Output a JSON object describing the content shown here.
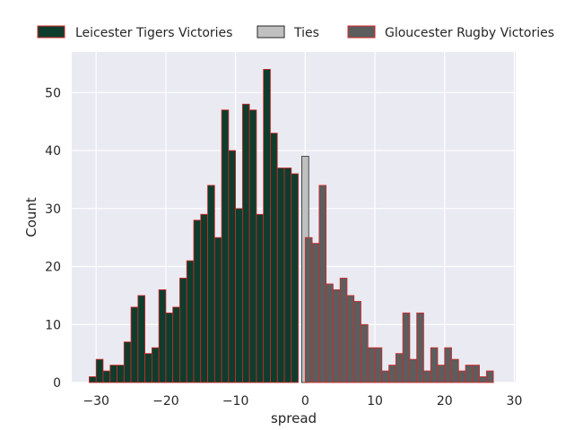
{
  "chart_data": {
    "type": "bar",
    "xlabel": "spread",
    "ylabel": "Count",
    "xlim": [
      -33.5,
      30.2
    ],
    "ylim": [
      0,
      57
    ],
    "x_ticks": [
      -30,
      -20,
      -10,
      0,
      10,
      20,
      30
    ],
    "y_ticks": [
      0,
      10,
      20,
      30,
      40,
      50
    ],
    "x_tick_labels": [
      "−30",
      "−20",
      "−10",
      "0",
      "10",
      "20",
      "30"
    ],
    "y_tick_labels": [
      "0",
      "10",
      "20",
      "30",
      "40",
      "50"
    ],
    "bin_width": 1,
    "grid": true,
    "legend_position": "top",
    "background_color": "#eaeaf2",
    "series": [
      {
        "name": "Leicester Tigers Victories",
        "color": "#0e3d2d",
        "edge_color": "#d62728",
        "x": [
          -31,
          -30,
          -29,
          -28,
          -27,
          -26,
          -25,
          -24,
          -23,
          -22,
          -21,
          -20,
          -19,
          -18,
          -17,
          -16,
          -15,
          -14,
          -13,
          -12,
          -11,
          -10,
          -9,
          -8,
          -7,
          -6,
          -5,
          -4,
          -3,
          -2,
          -1
        ],
        "values": [
          1,
          4,
          2,
          3,
          3,
          7,
          13,
          15,
          5,
          6,
          16,
          12,
          13,
          18,
          21,
          28,
          29,
          34,
          25,
          47,
          40,
          30,
          48,
          47,
          29,
          54,
          43,
          37,
          37,
          36,
          0
        ]
      },
      {
        "name": "Ties",
        "color": "#c0c0c0",
        "edge_color": "#262626",
        "x": [
          -0.5
        ],
        "values": [
          39
        ]
      },
      {
        "name": "Gloucester Rugby Victories",
        "color": "#5d5d5d",
        "edge_color": "#d62728",
        "x": [
          0,
          1,
          2,
          3,
          4,
          5,
          6,
          7,
          8,
          9,
          10,
          11,
          12,
          13,
          14,
          15,
          16,
          17,
          18,
          19,
          20,
          21,
          22,
          23,
          24,
          25,
          26,
          27
        ],
        "values": [
          25,
          24,
          34,
          17,
          16,
          18,
          15,
          14,
          10,
          6,
          6,
          2,
          3,
          5,
          12,
          4,
          12,
          2,
          6,
          3,
          6,
          4,
          2,
          3,
          3,
          1,
          2,
          0
        ]
      }
    ]
  }
}
